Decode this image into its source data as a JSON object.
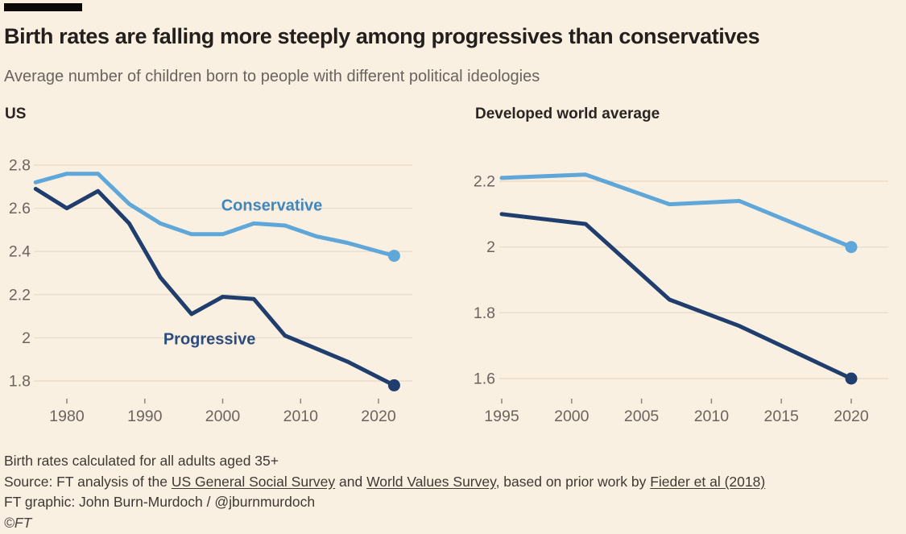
{
  "page": {
    "title": "Birth rates are falling more steeply among progressives than conservatives",
    "subtitle": "Average number of children born to people with different political ideologies"
  },
  "colors": {
    "background": "#FAF0E1",
    "conservative_line": "#5FA6D9",
    "conservative_label": "#4187BC",
    "progressive_line": "#1F3E6E",
    "progressive_label": "#2B4C7E",
    "gridline": "#E9DCCB",
    "axis_text": "#6B645E",
    "top_bar": "#0B0A09"
  },
  "chart_data": [
    {
      "type": "line",
      "title": "US",
      "xlabel": "",
      "ylabel": "",
      "xlim": [
        1975.7,
        2024.5
      ],
      "ylim": [
        1.75,
        2.82
      ],
      "grid": "horizontal",
      "legend": "inline-labels",
      "x": [
        1976,
        1980,
        1984,
        1988,
        1992,
        1996,
        2000,
        2004,
        2008,
        2012,
        2016,
        2022
      ],
      "series": [
        {
          "name": "Conservative",
          "color": "#5FA6D9",
          "label_color": "#4187BC",
          "values": [
            2.72,
            2.76,
            2.76,
            2.62,
            2.53,
            2.48,
            2.48,
            2.53,
            2.52,
            2.47,
            2.44,
            2.38
          ],
          "label_anchor": {
            "x": 2006.3,
            "y": 2.59
          }
        },
        {
          "name": "Progressive",
          "color": "#1F3E6E",
          "label_color": "#2B4C7E",
          "values": [
            2.69,
            2.6,
            2.68,
            2.53,
            2.28,
            2.11,
            2.19,
            2.18,
            2.01,
            1.95,
            1.89,
            1.78
          ],
          "label_anchor": {
            "x": 1998.3,
            "y": 1.97
          }
        }
      ],
      "xticks": [
        {
          "label": "1980",
          "value": 1980
        },
        {
          "label": "1990",
          "value": 1990
        },
        {
          "label": "2000",
          "value": 2000
        },
        {
          "label": "2010",
          "value": 2010
        },
        {
          "label": "2020",
          "value": 2020
        }
      ],
      "yticks": [
        {
          "label": "2.8",
          "value": 2.8
        },
        {
          "label": "2.6",
          "value": 2.6
        },
        {
          "label": "2.4",
          "value": 2.4
        },
        {
          "label": "2.2",
          "value": 2.2
        },
        {
          "label": "2",
          "value": 2.0
        },
        {
          "label": "1.8",
          "value": 1.8
        }
      ]
    },
    {
      "type": "line",
      "title": "Developed world average",
      "xlabel": "",
      "ylabel": "",
      "xlim": [
        1993,
        2022
      ],
      "ylim": [
        1.55,
        2.31
      ],
      "grid": "horizontal",
      "legend": "none",
      "x": [
        1995,
        2001,
        2007,
        2012,
        2020
      ],
      "series": [
        {
          "name": "Conservative",
          "color": "#5FA6D9",
          "label_color": "#4187BC",
          "values": [
            2.21,
            2.22,
            2.13,
            2.14,
            2.0
          ],
          "label_anchor": null
        },
        {
          "name": "Progressive",
          "color": "#1F3E6E",
          "label_color": "#2B4C7E",
          "values": [
            2.1,
            2.07,
            1.84,
            1.76,
            1.6
          ],
          "label_anchor": null
        }
      ],
      "xticks": [
        {
          "label": "1995",
          "value": 1995
        },
        {
          "label": "2000",
          "value": 2000
        },
        {
          "label": "2005",
          "value": 2005
        },
        {
          "label": "2010",
          "value": 2010
        },
        {
          "label": "2015",
          "value": 2015
        },
        {
          "label": "2020",
          "value": 2020
        }
      ],
      "yticks": [
        {
          "label": "2.2",
          "value": 2.2
        },
        {
          "label": "2",
          "value": 2.0
        },
        {
          "label": "1.8",
          "value": 1.8
        },
        {
          "label": "1.6",
          "value": 1.6
        }
      ]
    }
  ],
  "footer": {
    "note": "Birth rates calculated for all adults aged 35+",
    "source_segments": [
      {
        "text": "Source: FT analysis of the "
      },
      {
        "text": "US General Social Survey"
      },
      {
        "text": " and "
      },
      {
        "text": "World Values Survey"
      },
      {
        "text": ", based on prior work by "
      },
      {
        "text": "Fieder et al (2018)"
      }
    ],
    "credit": "FT graphic: John Burn-Murdoch / @jburnmurdoch",
    "copyright": "©FT"
  }
}
